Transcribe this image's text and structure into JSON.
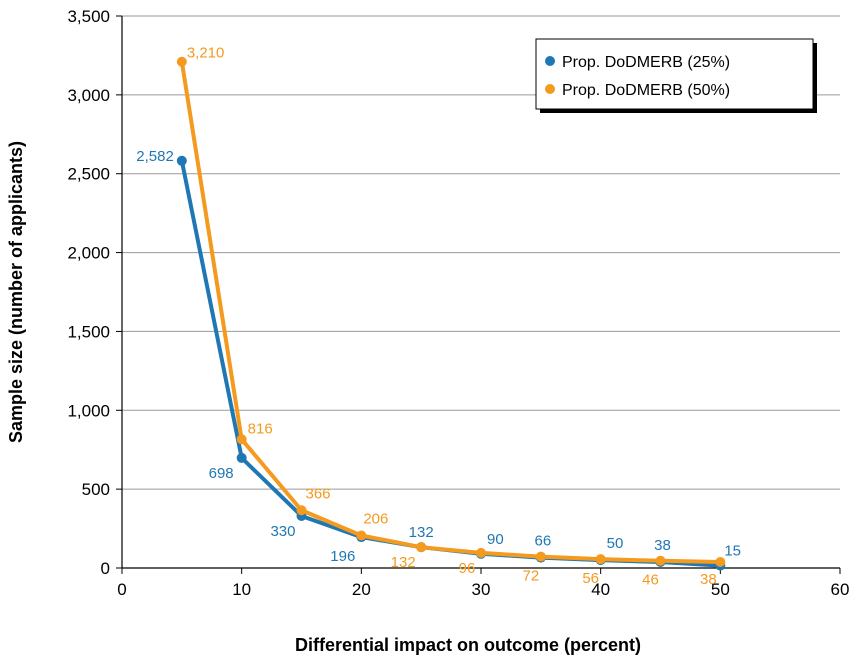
{
  "chart_data": {
    "type": "line",
    "xlabel": "Differential impact on outcome (percent)",
    "ylabel": "Sample size (number of applicants)",
    "xlim": [
      0,
      60
    ],
    "ylim": [
      0,
      3500
    ],
    "x_ticks": [
      0,
      10,
      20,
      30,
      40,
      50,
      60
    ],
    "x_tick_labels": [
      "0",
      "10",
      "20",
      "30",
      "40",
      "50",
      "60"
    ],
    "y_ticks": [
      0,
      500,
      1000,
      1500,
      2000,
      2500,
      3000,
      3500
    ],
    "y_tick_labels": [
      "0",
      "500",
      "1,000",
      "1,500",
      "2,000",
      "2,500",
      "3,000",
      "3,500"
    ],
    "grid": "horizontal",
    "legend_position": "top-right",
    "x": [
      5,
      10,
      15,
      20,
      25,
      30,
      35,
      40,
      45,
      50
    ],
    "series": [
      {
        "name": "Prop. DoDMERB (25%)",
        "color": "#1f77b4",
        "values": [
          2582,
          698,
          330,
          196,
          132,
          90,
          66,
          50,
          38,
          15
        ],
        "labels": [
          "2,582",
          "698",
          "330",
          "196",
          "132",
          "90",
          "66",
          "50",
          "38",
          "15"
        ]
      },
      {
        "name": "Prop. DoDMERB (50%)",
        "color": "#f39a1f",
        "values": [
          3210,
          816,
          366,
          206,
          132,
          96,
          72,
          56,
          46,
          38
        ],
        "labels": [
          "3,210",
          "816",
          "366",
          "206",
          "132",
          "96",
          "72",
          "56",
          "46",
          "38"
        ]
      }
    ]
  }
}
